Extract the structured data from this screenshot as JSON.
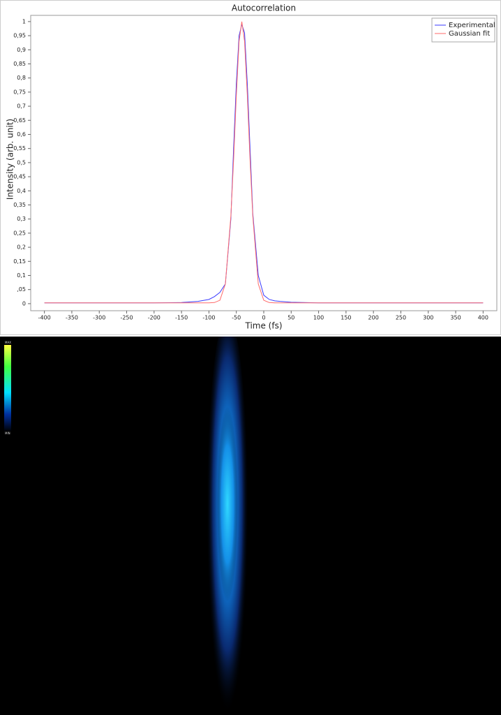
{
  "chart_data": {
    "type": "line",
    "title": "Autocorrelation",
    "x_label": "Time (fs)",
    "y_label": "Intensity (arb. unit)",
    "x": [
      -400,
      -350,
      -300,
      -250,
      -200,
      -150,
      -120,
      -100,
      -90,
      -80,
      -70,
      -60,
      -55,
      -50,
      -45,
      -40,
      -35,
      -30,
      -25,
      -20,
      -10,
      0,
      10,
      20,
      30,
      50,
      100,
      150,
      200,
      250,
      300,
      350,
      400
    ],
    "series": [
      {
        "name": "Experimental",
        "color": "#3a3aff",
        "values": [
          0.003,
          0.003,
          0.003,
          0.003,
          0.003,
          0.004,
          0.008,
          0.015,
          0.025,
          0.04,
          0.07,
          0.3,
          0.55,
          0.78,
          0.95,
          0.99,
          0.96,
          0.78,
          0.55,
          0.32,
          0.1,
          0.03,
          0.015,
          0.01,
          0.008,
          0.005,
          0.003,
          0.003,
          0.003,
          0.003,
          0.003,
          0.003,
          0.003
        ]
      },
      {
        "name": "Gaussian fit",
        "color": "#ff6a6a",
        "values": [
          0.003,
          0.003,
          0.003,
          0.003,
          0.003,
          0.003,
          0.003,
          0.003,
          0.004,
          0.012,
          0.07,
          0.31,
          0.51,
          0.74,
          0.93,
          1,
          0.93,
          0.74,
          0.51,
          0.31,
          0.07,
          0.012,
          0.004,
          0.003,
          0.003,
          0.003,
          0.003,
          0.003,
          0.003,
          0.003,
          0.003,
          0.003,
          0.003
        ]
      }
    ],
    "xlim": [
      -425,
      425
    ],
    "ylim": [
      -0.025,
      1.022
    ],
    "xticks": [
      -400,
      -350,
      -300,
      -250,
      -200,
      -150,
      -100,
      -50,
      0,
      50,
      100,
      150,
      200,
      250,
      300,
      350,
      400
    ],
    "yticks": [
      0,
      {
        "value": 0.05,
        "label": ",05"
      },
      {
        "value": 0.1,
        "label": "0,1"
      },
      {
        "value": 0.15,
        "label": "0,15"
      },
      {
        "value": 0.2,
        "label": "0,2"
      },
      {
        "value": 0.25,
        "label": "0,25"
      },
      {
        "value": 0.3,
        "label": "0,3"
      },
      {
        "value": 0.35,
        "label": "0,35"
      },
      {
        "value": 0.4,
        "label": "0,4"
      },
      {
        "value": 0.45,
        "label": "0,45"
      },
      {
        "value": 0.5,
        "label": "0,5"
      },
      {
        "value": 0.55,
        "label": "0,55"
      },
      {
        "value": 0.6,
        "label": "0,6"
      },
      {
        "value": 0.65,
        "label": "0,65"
      },
      {
        "value": 0.7,
        "label": "0,7"
      },
      {
        "value": 0.75,
        "label": "0,75"
      },
      {
        "value": 0.8,
        "label": "0,8"
      },
      {
        "value": 0.85,
        "label": "0,85"
      },
      {
        "value": 0.9,
        "label": "0,9"
      },
      {
        "value": 0.95,
        "label": "0,95"
      },
      1
    ],
    "grid": false,
    "legend": "top-right"
  },
  "image": {
    "colorbar": {
      "max_label": "MAX",
      "min_label": "MIN"
    }
  }
}
